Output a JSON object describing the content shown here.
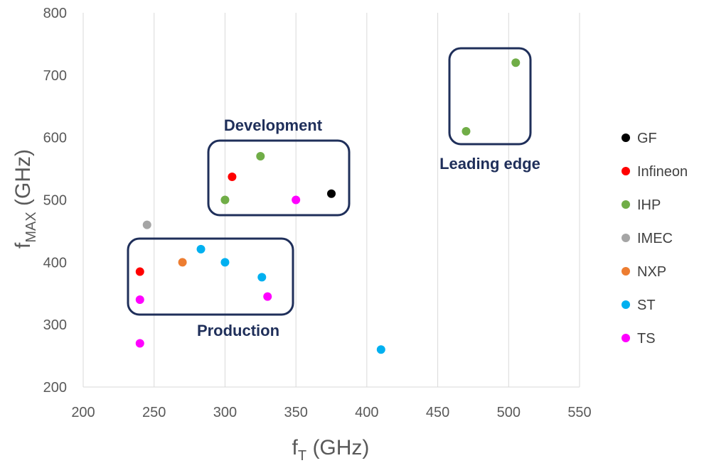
{
  "chart_data": {
    "type": "scatter",
    "title": "",
    "xlabel": {
      "main": "f",
      "sub": "T",
      "suffix": " (GHz)"
    },
    "ylabel": {
      "main": "f",
      "sub": "MAX",
      "suffix": " (GHz)"
    },
    "xlim": [
      200,
      550
    ],
    "ylim": [
      200,
      800
    ],
    "xticks": [
      200,
      250,
      300,
      350,
      400,
      450,
      500,
      550
    ],
    "yticks": [
      200,
      300,
      400,
      500,
      600,
      700,
      800
    ],
    "grid": {
      "vertical": true,
      "horizontal": false
    },
    "legend_position": "right",
    "series": [
      {
        "name": "GF",
        "color": "#000000",
        "points": [
          [
            375,
            510
          ]
        ]
      },
      {
        "name": "Infineon",
        "color": "#ff0000",
        "points": [
          [
            305,
            537
          ],
          [
            240,
            385
          ]
        ]
      },
      {
        "name": "IHP",
        "color": "#70ad47",
        "points": [
          [
            505,
            720
          ],
          [
            470,
            610
          ],
          [
            325,
            570
          ],
          [
            300,
            500
          ]
        ]
      },
      {
        "name": "IMEC",
        "color": "#a5a5a5",
        "points": [
          [
            245,
            460
          ]
        ]
      },
      {
        "name": "NXP",
        "color": "#ed7d31",
        "points": [
          [
            270,
            400
          ]
        ]
      },
      {
        "name": "ST",
        "color": "#00b0f0",
        "points": [
          [
            283,
            421
          ],
          [
            300,
            400
          ],
          [
            326,
            376
          ],
          [
            410,
            260
          ]
        ]
      },
      {
        "name": "TS",
        "color": "#ff00ff",
        "points": [
          [
            350,
            500
          ],
          [
            330,
            345
          ],
          [
            240,
            340
          ],
          [
            240,
            270
          ]
        ]
      }
    ],
    "annotations": [
      {
        "text": "Development"
      },
      {
        "text": "Production"
      },
      {
        "text": "Leading edge"
      }
    ]
  }
}
